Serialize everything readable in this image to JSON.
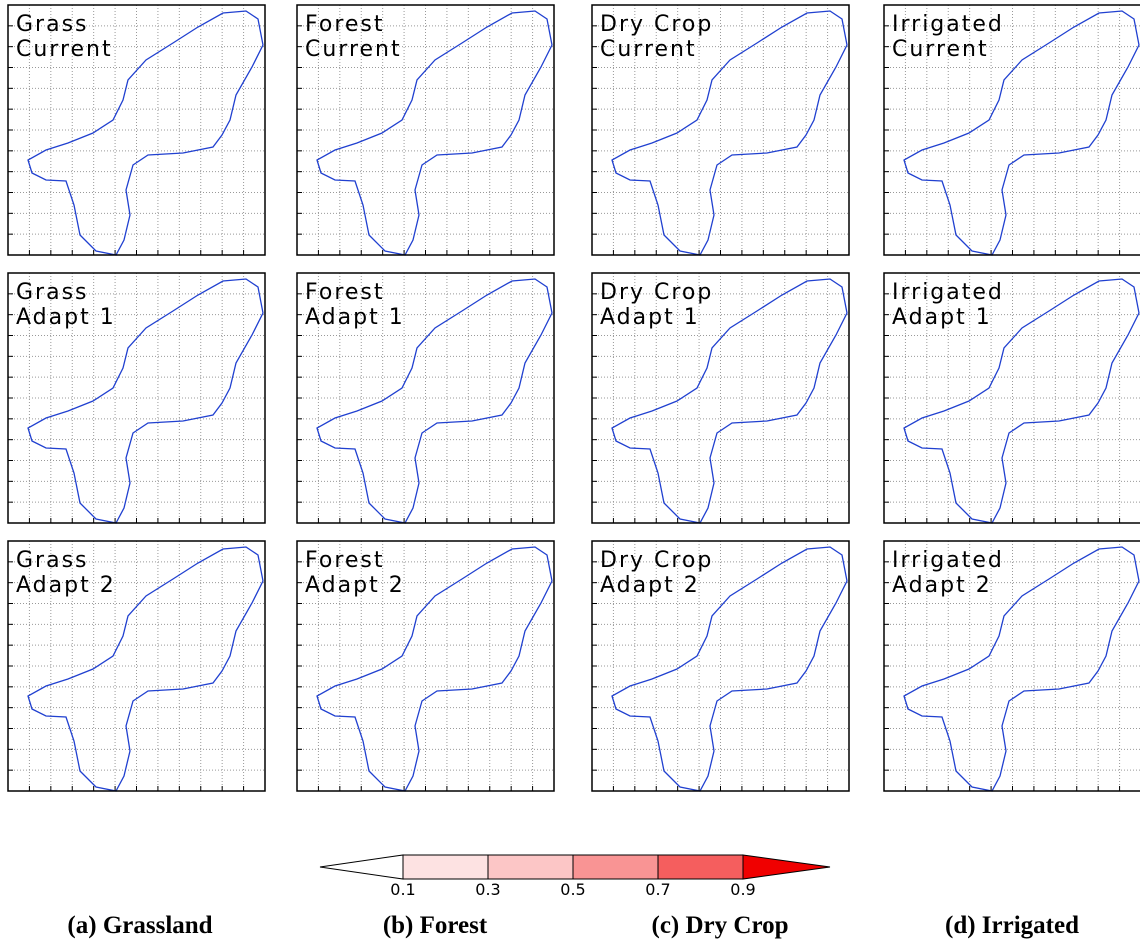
{
  "panels": [
    [
      {
        "lines": [
          "Grass",
          "Current"
        ]
      },
      {
        "lines": [
          "Forest",
          "Current"
        ]
      },
      {
        "lines": [
          "Dry Crop",
          "Current"
        ]
      },
      {
        "lines": [
          "Irrigated",
          "Current"
        ]
      }
    ],
    [
      {
        "lines": [
          "Grass",
          "Adapt 1"
        ]
      },
      {
        "lines": [
          "Forest",
          "Adapt 1"
        ]
      },
      {
        "lines": [
          "Dry Crop",
          "Adapt 1"
        ]
      },
      {
        "lines": [
          "Irrigated",
          "Adapt 1"
        ]
      }
    ],
    [
      {
        "lines": [
          "Grass",
          "Adapt 2"
        ]
      },
      {
        "lines": [
          "Forest",
          "Adapt 2"
        ]
      },
      {
        "lines": [
          "Dry Crop",
          "Adapt 2"
        ]
      },
      {
        "lines": [
          "Irrigated",
          "Adapt 2"
        ]
      }
    ]
  ],
  "colorbar": {
    "ticks": [
      0.1,
      0.3,
      0.5,
      0.7,
      0.9
    ],
    "colors": [
      "#ffffff",
      "#fde2e2",
      "#fcc6c6",
      "#f99494",
      "#f55e5e",
      "#f00000"
    ]
  },
  "captions": [
    "(a) Grassland",
    "(b) Forest",
    "(c) Dry Crop",
    "(d) Irrigated"
  ]
}
